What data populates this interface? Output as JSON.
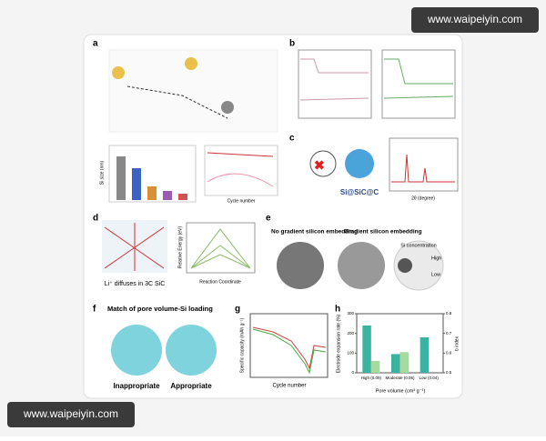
{
  "watermarks": [
    "www.waipeiyin.com",
    "www.waipeiyin.com"
  ],
  "panels": {
    "a": {
      "letter": "a",
      "bar_axis": "Si size (nm)",
      "line_axis": "Cycle number"
    },
    "b": {
      "letter": "b"
    },
    "c": {
      "letter": "c",
      "label": "Si@SiC@C",
      "x_label": "2θ (degree)"
    },
    "d": {
      "letter": "d",
      "caption": "Li⁺ diffuses in 3C SiC",
      "x_label": "Reaction Coordinate",
      "y_label": "Relative Energy (eV)"
    },
    "e": {
      "letter": "e",
      "left_title": "No gradient silicon embedding",
      "right_title": "Gradient silicon embedding",
      "legend_title": "Si concentration",
      "high": "High",
      "low": "Low"
    },
    "f": {
      "letter": "f",
      "title": "Match of pore volume-Si loading",
      "left": "Inappropriate",
      "right": "Appropriate"
    },
    "g": {
      "letter": "g",
      "x_label": "Cycle number",
      "y_label": "Specific capacity (mAh g⁻¹)"
    },
    "h": {
      "letter": "h",
      "y_label": "Electrode expansion rate (%)",
      "y2_label": "b index",
      "x_label": "Pore volume (cm³ g⁻¹)",
      "categories": [
        "High (0.09)",
        "Moderate (0.06)",
        "Low (0.04)"
      ],
      "series": [
        {
          "color": "#3bb3a0",
          "values": [
            240,
            95,
            180
          ]
        },
        {
          "color": "#a6dba0",
          "values": [
            60,
            105,
            null
          ]
        }
      ],
      "ylim": [
        0,
        300
      ],
      "yticks": [
        0,
        100,
        200,
        300
      ],
      "y2lim": [
        0.5,
        0.8
      ],
      "y2ticks": [
        0.5,
        0.6,
        0.7,
        0.8
      ]
    }
  }
}
